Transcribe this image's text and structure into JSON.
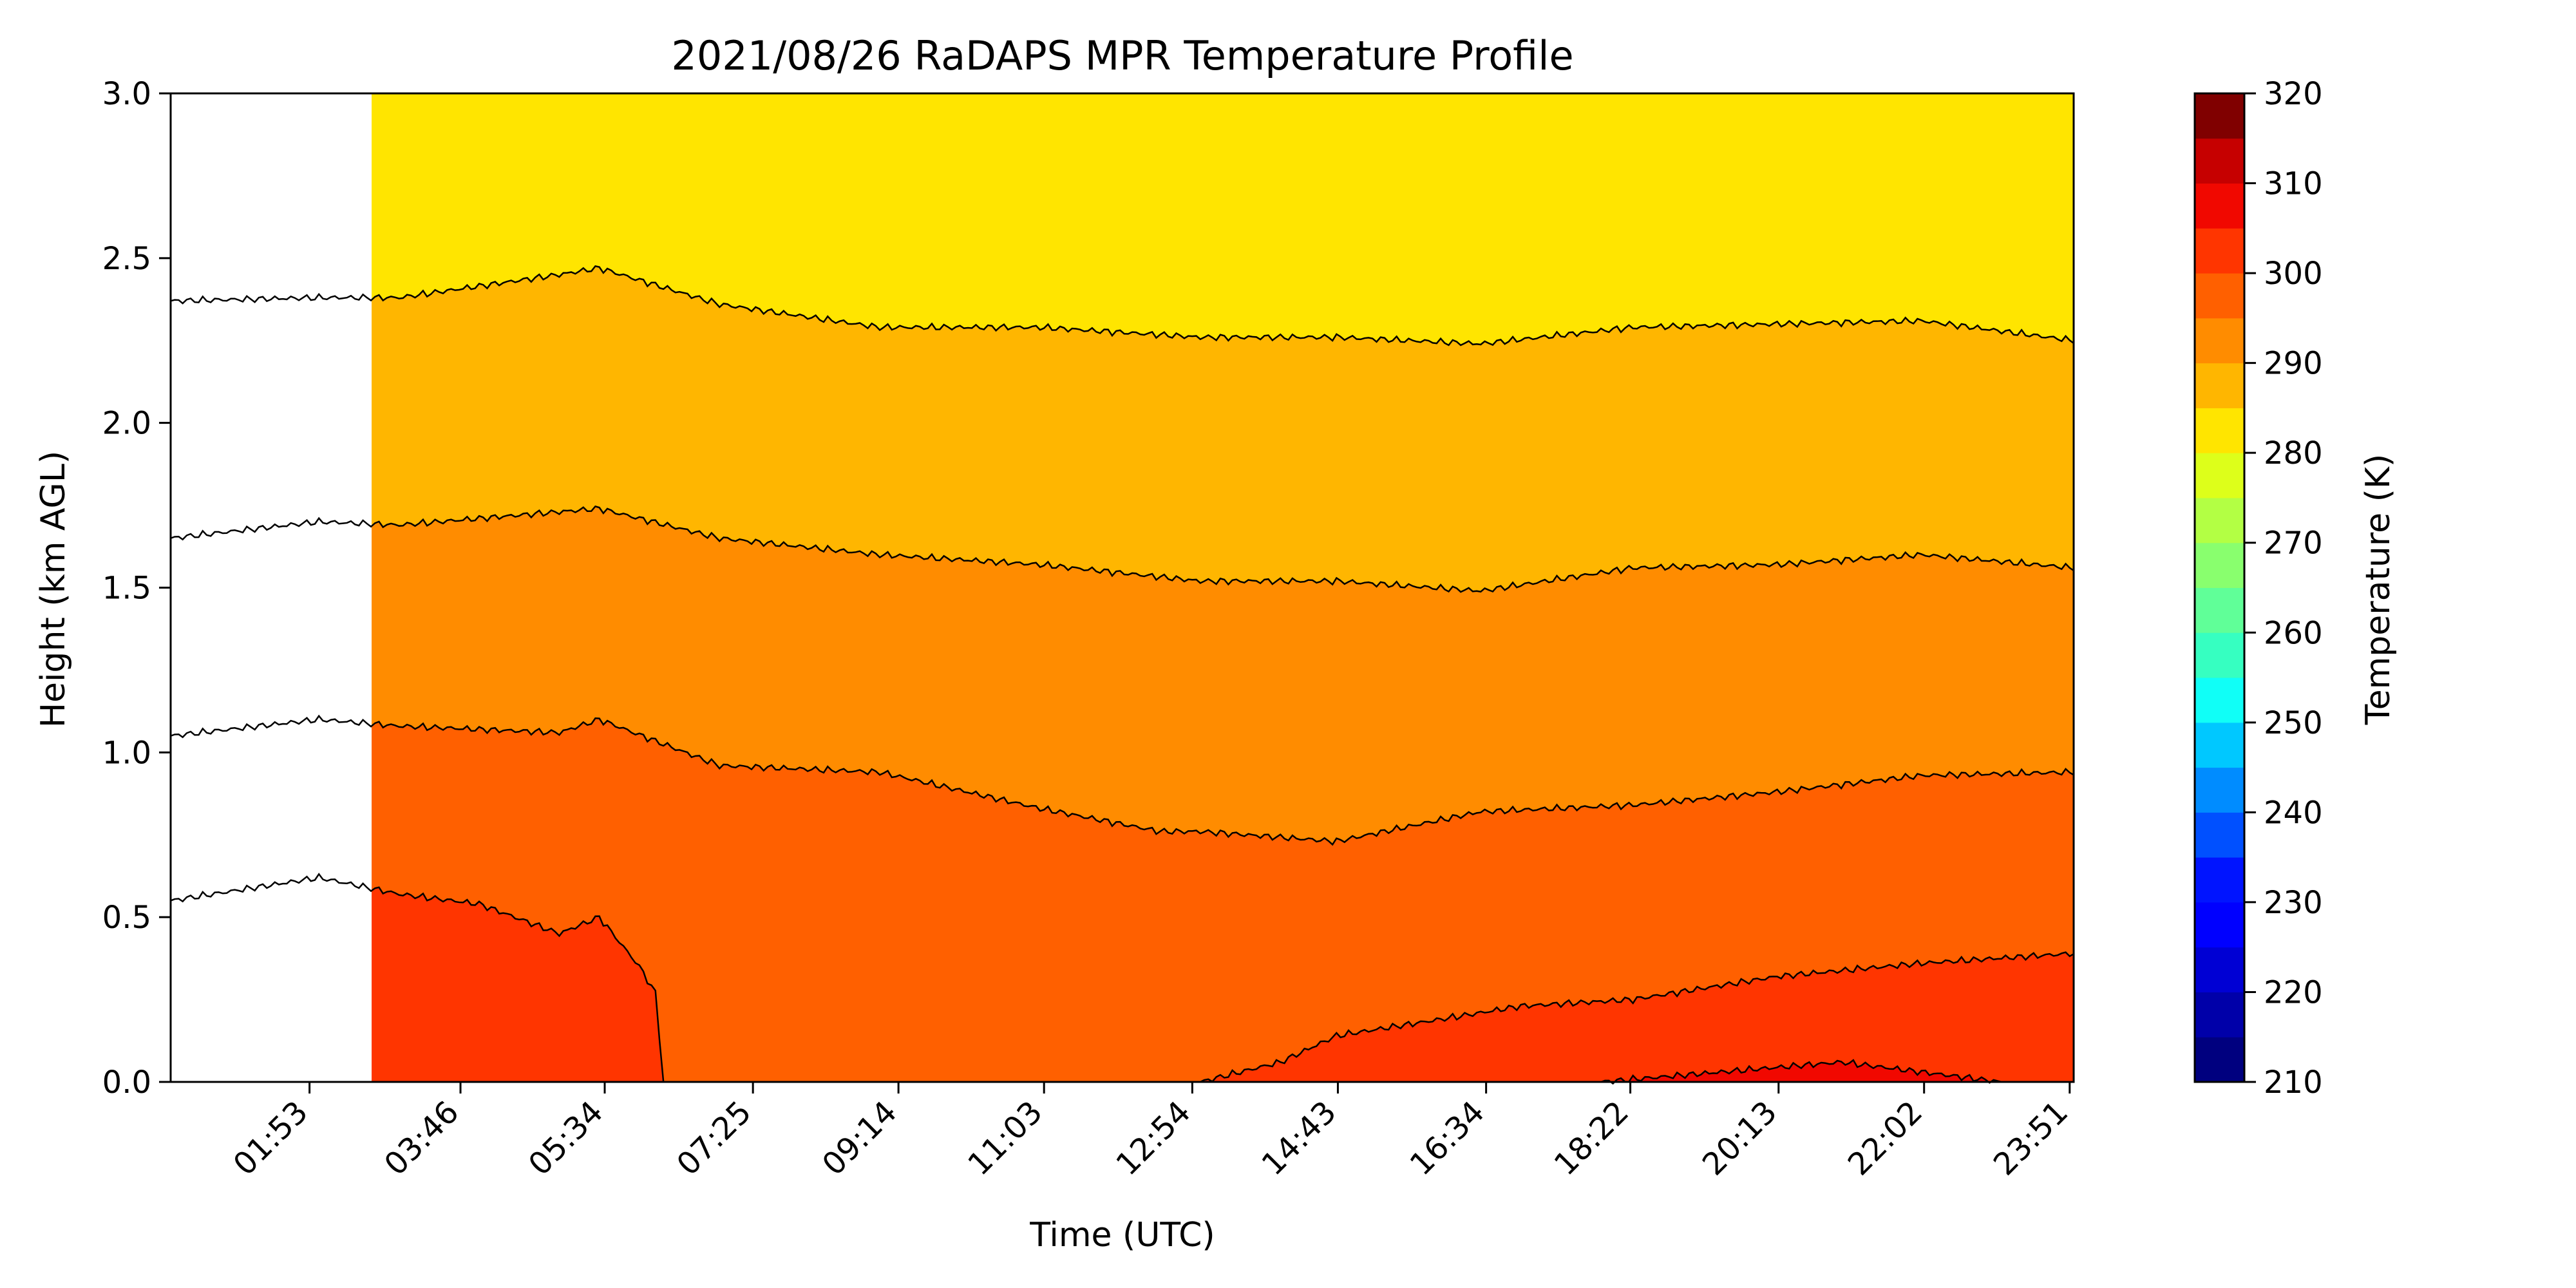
{
  "chart_data": {
    "type": "heatmap",
    "subtype": "filled-contour",
    "title": "2021/08/26 RaDAPS MPR Temperature Profile",
    "xlabel": "Time (UTC)",
    "ylabel": "Height (km AGL)",
    "colorbar_label": "Temperature (K)",
    "x_tick_labels": [
      "01:53",
      "03:46",
      "05:34",
      "07:25",
      "09:14",
      "11:03",
      "12:54",
      "14:43",
      "16:34",
      "18:22",
      "20:13",
      "22:02",
      "23:51"
    ],
    "x_tick_hours": [
      1.883,
      3.767,
      5.567,
      7.417,
      9.233,
      11.05,
      12.9,
      14.717,
      16.567,
      18.367,
      20.217,
      22.033,
      23.85
    ],
    "xlim_hours": [
      0.15,
      23.9
    ],
    "ylim": [
      0,
      3
    ],
    "y_ticks": [
      0.0,
      0.5,
      1.0,
      1.5,
      2.0,
      2.5,
      3.0
    ],
    "y_tick_labels": [
      "0.0",
      "0.5",
      "1.0",
      "1.5",
      "2.0",
      "2.5",
      "3.0"
    ],
    "colorbar_ticks": [
      210,
      220,
      230,
      240,
      250,
      260,
      270,
      280,
      290,
      300,
      310,
      320
    ],
    "colorbar_levels": [
      {
        "min": 210,
        "max": 215,
        "color": "#00007f"
      },
      {
        "min": 215,
        "max": 220,
        "color": "#0000a9"
      },
      {
        "min": 220,
        "max": 225,
        "color": "#0000d4"
      },
      {
        "min": 225,
        "max": 230,
        "color": "#0000ff"
      },
      {
        "min": 230,
        "max": 235,
        "color": "#0014ff"
      },
      {
        "min": 235,
        "max": 240,
        "color": "#0050ff"
      },
      {
        "min": 240,
        "max": 245,
        "color": "#008cff"
      },
      {
        "min": 245,
        "max": 250,
        "color": "#00c8ff"
      },
      {
        "min": 250,
        "max": 255,
        "color": "#10fff7"
      },
      {
        "min": 255,
        "max": 260,
        "color": "#36ffc1"
      },
      {
        "min": 260,
        "max": 265,
        "color": "#60ff98"
      },
      {
        "min": 265,
        "max": 270,
        "color": "#89ff6e"
      },
      {
        "min": 270,
        "max": 275,
        "color": "#b3ff44"
      },
      {
        "min": 275,
        "max": 280,
        "color": "#ddff1a"
      },
      {
        "min": 280,
        "max": 285,
        "color": "#ffe500"
      },
      {
        "min": 285,
        "max": 290,
        "color": "#ffb600"
      },
      {
        "min": 290,
        "max": 295,
        "color": "#ff8c00"
      },
      {
        "min": 295,
        "max": 300,
        "color": "#ff6000"
      },
      {
        "min": 300,
        "max": 305,
        "color": "#ff3500"
      },
      {
        "min": 305,
        "max": 310,
        "color": "#f10800"
      },
      {
        "min": 310,
        "max": 315,
        "color": "#c60000"
      },
      {
        "min": 315,
        "max": 320,
        "color": "#800000"
      }
    ],
    "contour_boundaries_km": [
      {
        "level_k": 280,
        "hours": [
          0.15,
          2.0,
          3.0,
          5.0,
          5.5,
          7.0,
          9.0,
          11.0,
          13.0,
          14.7,
          16.5,
          18.4,
          20.2,
          22.0,
          23.9
        ],
        "height": [
          2.37,
          2.38,
          2.38,
          2.45,
          2.47,
          2.36,
          2.29,
          2.29,
          2.26,
          2.26,
          2.24,
          2.29,
          2.3,
          2.31,
          2.25
        ]
      },
      {
        "level_k": 285,
        "hours": [
          0.15,
          2.0,
          3.0,
          5.0,
          5.5,
          7.0,
          9.0,
          11.0,
          13.0,
          14.7,
          16.5,
          18.4,
          20.2,
          22.0,
          23.9
        ],
        "height": [
          1.65,
          1.7,
          1.69,
          1.73,
          1.74,
          1.65,
          1.6,
          1.57,
          1.52,
          1.52,
          1.49,
          1.56,
          1.57,
          1.6,
          1.56
        ]
      },
      {
        "level_k": 290,
        "hours": [
          0.15,
          2.0,
          3.0,
          5.0,
          5.5,
          7.0,
          9.0,
          11.0,
          12.5,
          13.0,
          14.7,
          16.5,
          18.4,
          20.2,
          22.0,
          23.9
        ],
        "height": [
          1.05,
          1.1,
          1.08,
          1.06,
          1.1,
          0.96,
          0.94,
          0.83,
          0.76,
          0.76,
          0.73,
          0.82,
          0.84,
          0.88,
          0.93,
          0.94
        ]
      },
      {
        "level_k": 295,
        "hours": [
          0.15,
          2.0,
          3.0,
          4.0,
          5.0,
          5.5,
          6.0,
          6.2,
          6.3
        ],
        "height": [
          0.55,
          0.62,
          0.57,
          0.54,
          0.45,
          0.5,
          0.35,
          0.27,
          0.0
        ]
      },
      {
        "level_k": 295,
        "hours": [
          13.0,
          14.0,
          14.7,
          16.0,
          17.0,
          18.4,
          20.2,
          22.0,
          23.9
        ],
        "height": [
          0.0,
          0.06,
          0.14,
          0.19,
          0.23,
          0.25,
          0.32,
          0.36,
          0.39
        ]
      },
      {
        "level_k": 300,
        "hours": [
          18.0,
          19.0,
          20.0,
          21.0,
          22.0,
          23.0
        ],
        "height": [
          0.0,
          0.02,
          0.04,
          0.06,
          0.03,
          0.0
        ]
      }
    ],
    "missing_data_gap_hours": [
      0.15,
      2.65
    ],
    "grid": false
  }
}
